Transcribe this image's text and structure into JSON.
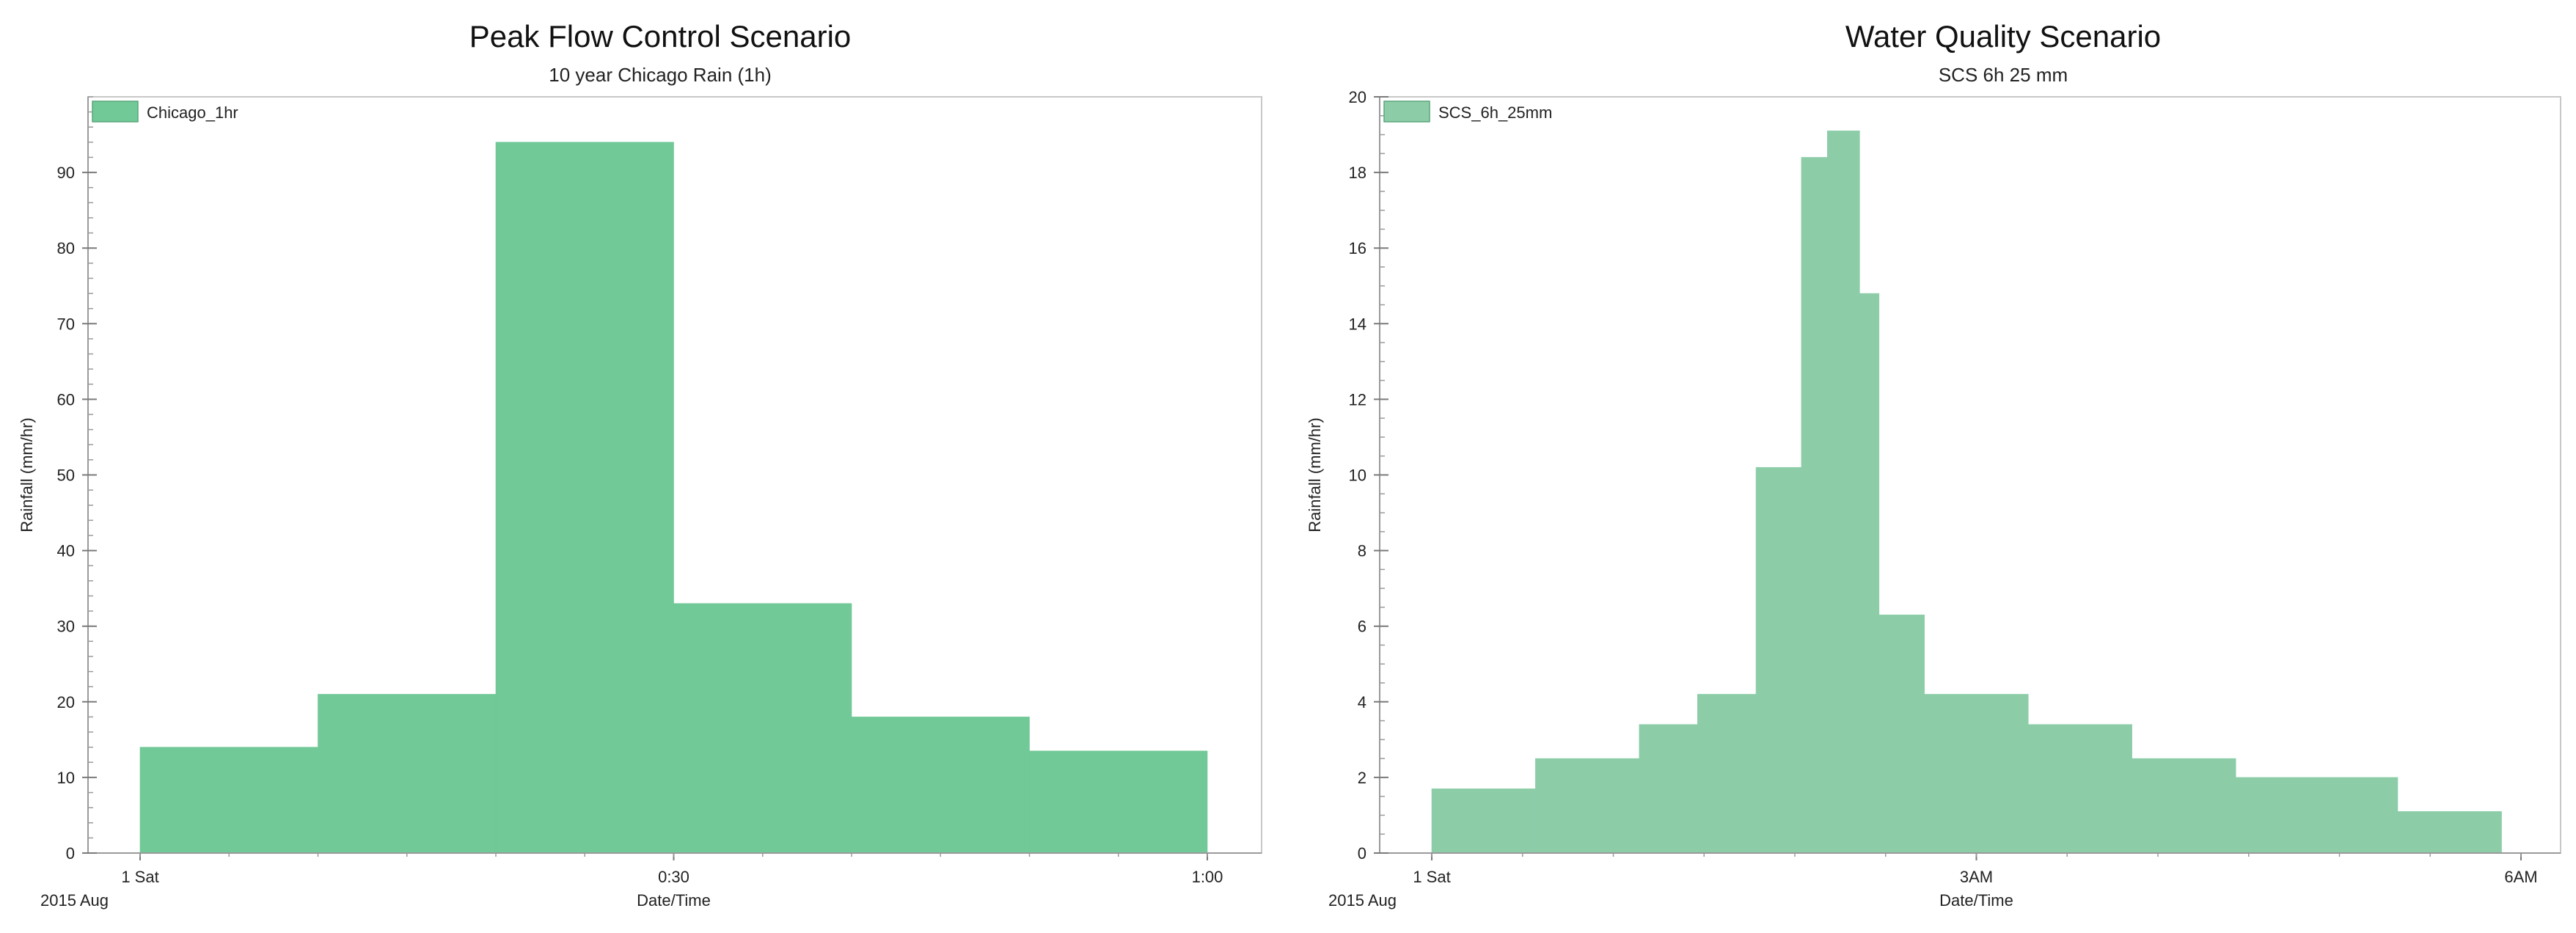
{
  "chart_data": [
    {
      "type": "bar",
      "title": "Peak Flow Control Scenario",
      "subtitle": "10 year Chicago Rain (1h)",
      "xlabel": "Date/Time",
      "ylabel": "Rainfall (mm/hr)",
      "x_secondary_label": "2015 Aug",
      "xlim": [
        0,
        60
      ],
      "x_unit": "minutes",
      "x_ticks": [
        {
          "x": 0,
          "label": "1 Sat"
        },
        {
          "x": 30,
          "label": "0:30"
        },
        {
          "x": 60,
          "label": "1:00"
        }
      ],
      "ylim": [
        0,
        100
      ],
      "y_ticks": [
        0,
        10,
        20,
        30,
        40,
        50,
        60,
        70,
        80,
        90
      ],
      "y_minor_step": 2,
      "legend": {
        "position": "top-left",
        "entries": [
          "Chicago_1hr"
        ]
      },
      "color": "#70c997",
      "series": [
        {
          "name": "Chicago_1hr",
          "bins": [
            {
              "start": 0,
              "end": 10,
              "value": 14
            },
            {
              "start": 10,
              "end": 20,
              "value": 21
            },
            {
              "start": 20,
              "end": 30,
              "value": 94
            },
            {
              "start": 30,
              "end": 40,
              "value": 33
            },
            {
              "start": 40,
              "end": 50,
              "value": 18
            },
            {
              "start": 50,
              "end": 60,
              "value": 13.5
            }
          ]
        }
      ]
    },
    {
      "type": "bar",
      "title": "Water Quality Scenario",
      "subtitle": "SCS 6h 25 mm",
      "xlabel": "Date/Time",
      "ylabel": "Rainfall (mm/hr)",
      "x_secondary_label": "2015 Aug",
      "xlim": [
        0,
        6
      ],
      "x_unit": "hours",
      "x_ticks": [
        {
          "x": 0,
          "label": "1 Sat"
        },
        {
          "x": 3,
          "label": "3AM"
        },
        {
          "x": 6,
          "label": "6AM"
        }
      ],
      "ylim": [
        0,
        20
      ],
      "y_ticks": [
        0,
        2,
        4,
        6,
        8,
        10,
        12,
        14,
        16,
        18,
        20
      ],
      "y_minor_step": 0.5,
      "legend": {
        "position": "top-left",
        "entries": [
          "SCS_6h_25mm"
        ]
      },
      "color": "#8ccda8",
      "series": [
        {
          "name": "SCS_6h_25mm",
          "bins": [
            {
              "start": 0,
              "end": 0.571,
              "value": 1.7
            },
            {
              "start": 0.571,
              "end": 1.143,
              "value": 2.5
            },
            {
              "start": 1.143,
              "end": 1.464,
              "value": 3.4
            },
            {
              "start": 1.464,
              "end": 1.786,
              "value": 4.2
            },
            {
              "start": 1.786,
              "end": 2.036,
              "value": 10.2
            },
            {
              "start": 2.036,
              "end": 2.179,
              "value": 18.4
            },
            {
              "start": 2.179,
              "end": 2.357,
              "value": 19.1
            },
            {
              "start": 2.357,
              "end": 2.464,
              "value": 14.8
            },
            {
              "start": 2.464,
              "end": 2.714,
              "value": 6.3
            },
            {
              "start": 2.714,
              "end": 3.286,
              "value": 4.2
            },
            {
              "start": 3.286,
              "end": 3.857,
              "value": 3.4
            },
            {
              "start": 3.857,
              "end": 4.429,
              "value": 2.5
            },
            {
              "start": 4.429,
              "end": 5.321,
              "value": 2.0
            },
            {
              "start": 5.321,
              "end": 5.893,
              "value": 1.1
            }
          ]
        }
      ]
    }
  ]
}
